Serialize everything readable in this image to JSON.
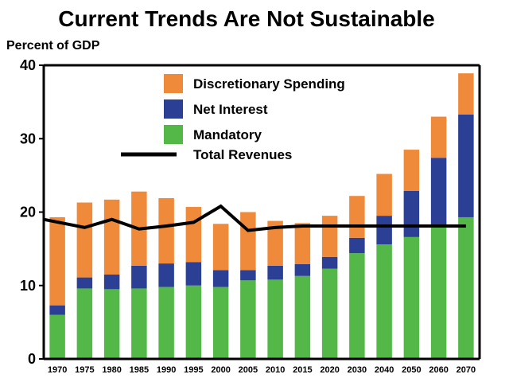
{
  "chart_data": {
    "type": "bar",
    "stacked": true,
    "title": "Current Trends Are Not Sustainable",
    "ylabel": "Percent of GDP",
    "xlabel": "",
    "ylim": [
      0,
      40
    ],
    "yticks": [
      "0",
      "10",
      "20",
      "30",
      "40"
    ],
    "categories": [
      "1970",
      "1975",
      "1980",
      "1985",
      "1990",
      "1995",
      "2000",
      "2005",
      "2010",
      "2015",
      "2020",
      "2030",
      "2040",
      "2050",
      "2060",
      "2070"
    ],
    "series": [
      {
        "name": "Mandatory",
        "color": "#54b848",
        "values": [
          6.0,
          9.6,
          9.5,
          9.6,
          9.8,
          10.0,
          9.8,
          10.7,
          10.8,
          11.3,
          12.3,
          14.4,
          15.6,
          16.6,
          17.9,
          19.3
        ]
      },
      {
        "name": "Net Interest",
        "color": "#2b3f94",
        "values": [
          1.3,
          1.5,
          2.0,
          3.1,
          3.2,
          3.2,
          2.3,
          1.4,
          1.9,
          1.6,
          1.6,
          2.1,
          3.9,
          6.3,
          9.5,
          14.0
        ]
      },
      {
        "name": "Discretionary Spending",
        "color": "#ef8a3a",
        "values": [
          12.0,
          10.2,
          10.2,
          10.1,
          8.9,
          7.5,
          6.3,
          7.9,
          6.1,
          5.6,
          5.6,
          5.7,
          5.7,
          5.6,
          5.6,
          5.6
        ]
      }
    ],
    "line": {
      "name": "Total Revenues",
      "color": "#000000",
      "values": [
        19.0,
        17.9,
        19.0,
        17.7,
        18.1,
        18.6,
        20.8,
        17.5,
        17.9,
        18.1,
        18.1,
        18.1,
        18.1,
        18.1,
        18.1,
        18.1
      ]
    },
    "legend": [
      {
        "name": "Discretionary Spending",
        "color": "#ef8a3a",
        "kind": "box"
      },
      {
        "name": "Net Interest",
        "color": "#2b3f94",
        "kind": "box"
      },
      {
        "name": "Mandatory",
        "color": "#54b848",
        "kind": "box"
      },
      {
        "name": "Total Revenues",
        "color": "#000000",
        "kind": "line"
      }
    ],
    "legend_position": "top-center",
    "grid": false
  }
}
